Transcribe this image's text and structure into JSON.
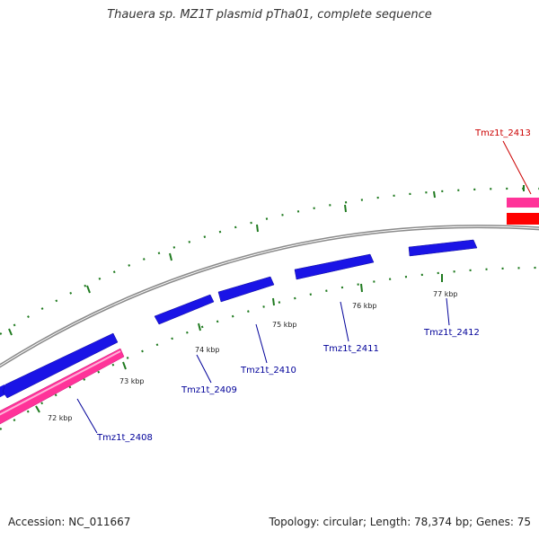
{
  "title": "Thauera sp. MZ1T plasmid pTha01, complete sequence",
  "footer": {
    "accession": "Accession: NC_011667",
    "summary": "Topology: circular; Length: 78,374 bp; Genes: 75"
  },
  "colors": {
    "forward_cds": "#1a14e6",
    "reverse_cds": "#ff3399",
    "red_feature": "#ff0000",
    "backbone": "#8a8a8a",
    "ticks": "#1f7a1f",
    "label_blue": "#000099",
    "label_red": "#cc0000"
  },
  "diagram": {
    "tick_labels": [
      {
        "text": "72 kbp"
      },
      {
        "text": "73 kbp"
      },
      {
        "text": "74 kbp"
      },
      {
        "text": "75 kbp"
      },
      {
        "text": "76 kbp"
      },
      {
        "text": "77 kbp"
      }
    ],
    "genes": [
      {
        "name": "Tmz1t_2408",
        "color": "blue"
      },
      {
        "name": "Tmz1t_2409",
        "color": "blue"
      },
      {
        "name": "Tmz1t_2410",
        "color": "blue"
      },
      {
        "name": "Tmz1t_2411",
        "color": "blue"
      },
      {
        "name": "Tmz1t_2412",
        "color": "blue"
      },
      {
        "name": "Tmz1t_2413",
        "color": "red"
      }
    ]
  }
}
